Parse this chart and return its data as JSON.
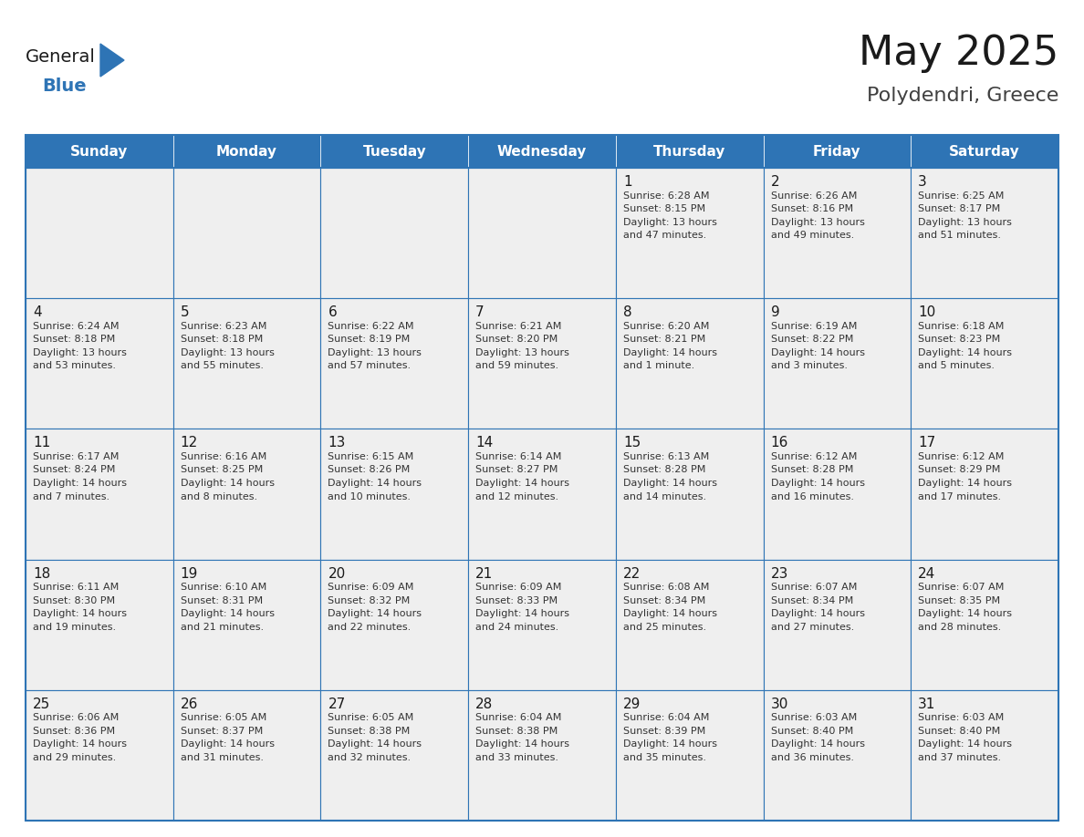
{
  "title": "May 2025",
  "subtitle": "Polydendri, Greece",
  "days_of_week": [
    "Sunday",
    "Monday",
    "Tuesday",
    "Wednesday",
    "Thursday",
    "Friday",
    "Saturday"
  ],
  "header_bg": "#2E74B5",
  "header_text": "#FFFFFF",
  "cell_bg": "#EFEFEF",
  "border_color": "#2E74B5",
  "text_color": "#333333",
  "day_num_color": "#1a1a1a",
  "logo_general_color": "#1a1a1a",
  "logo_blue_color": "#2E74B5",
  "weeks": [
    [
      {
        "day": null,
        "sunrise": null,
        "sunset": null,
        "daylight": null
      },
      {
        "day": null,
        "sunrise": null,
        "sunset": null,
        "daylight": null
      },
      {
        "day": null,
        "sunrise": null,
        "sunset": null,
        "daylight": null
      },
      {
        "day": null,
        "sunrise": null,
        "sunset": null,
        "daylight": null
      },
      {
        "day": 1,
        "sunrise": "6:28 AM",
        "sunset": "8:15 PM",
        "daylight": "13 hours and 47 minutes."
      },
      {
        "day": 2,
        "sunrise": "6:26 AM",
        "sunset": "8:16 PM",
        "daylight": "13 hours and 49 minutes."
      },
      {
        "day": 3,
        "sunrise": "6:25 AM",
        "sunset": "8:17 PM",
        "daylight": "13 hours and 51 minutes."
      }
    ],
    [
      {
        "day": 4,
        "sunrise": "6:24 AM",
        "sunset": "8:18 PM",
        "daylight": "13 hours and 53 minutes."
      },
      {
        "day": 5,
        "sunrise": "6:23 AM",
        "sunset": "8:18 PM",
        "daylight": "13 hours and 55 minutes."
      },
      {
        "day": 6,
        "sunrise": "6:22 AM",
        "sunset": "8:19 PM",
        "daylight": "13 hours and 57 minutes."
      },
      {
        "day": 7,
        "sunrise": "6:21 AM",
        "sunset": "8:20 PM",
        "daylight": "13 hours and 59 minutes."
      },
      {
        "day": 8,
        "sunrise": "6:20 AM",
        "sunset": "8:21 PM",
        "daylight": "14 hours and 1 minute."
      },
      {
        "day": 9,
        "sunrise": "6:19 AM",
        "sunset": "8:22 PM",
        "daylight": "14 hours and 3 minutes."
      },
      {
        "day": 10,
        "sunrise": "6:18 AM",
        "sunset": "8:23 PM",
        "daylight": "14 hours and 5 minutes."
      }
    ],
    [
      {
        "day": 11,
        "sunrise": "6:17 AM",
        "sunset": "8:24 PM",
        "daylight": "14 hours and 7 minutes."
      },
      {
        "day": 12,
        "sunrise": "6:16 AM",
        "sunset": "8:25 PM",
        "daylight": "14 hours and 8 minutes."
      },
      {
        "day": 13,
        "sunrise": "6:15 AM",
        "sunset": "8:26 PM",
        "daylight": "14 hours and 10 minutes."
      },
      {
        "day": 14,
        "sunrise": "6:14 AM",
        "sunset": "8:27 PM",
        "daylight": "14 hours and 12 minutes."
      },
      {
        "day": 15,
        "sunrise": "6:13 AM",
        "sunset": "8:28 PM",
        "daylight": "14 hours and 14 minutes."
      },
      {
        "day": 16,
        "sunrise": "6:12 AM",
        "sunset": "8:28 PM",
        "daylight": "14 hours and 16 minutes."
      },
      {
        "day": 17,
        "sunrise": "6:12 AM",
        "sunset": "8:29 PM",
        "daylight": "14 hours and 17 minutes."
      }
    ],
    [
      {
        "day": 18,
        "sunrise": "6:11 AM",
        "sunset": "8:30 PM",
        "daylight": "14 hours and 19 minutes."
      },
      {
        "day": 19,
        "sunrise": "6:10 AM",
        "sunset": "8:31 PM",
        "daylight": "14 hours and 21 minutes."
      },
      {
        "day": 20,
        "sunrise": "6:09 AM",
        "sunset": "8:32 PM",
        "daylight": "14 hours and 22 minutes."
      },
      {
        "day": 21,
        "sunrise": "6:09 AM",
        "sunset": "8:33 PM",
        "daylight": "14 hours and 24 minutes."
      },
      {
        "day": 22,
        "sunrise": "6:08 AM",
        "sunset": "8:34 PM",
        "daylight": "14 hours and 25 minutes."
      },
      {
        "day": 23,
        "sunrise": "6:07 AM",
        "sunset": "8:34 PM",
        "daylight": "14 hours and 27 minutes."
      },
      {
        "day": 24,
        "sunrise": "6:07 AM",
        "sunset": "8:35 PM",
        "daylight": "14 hours and 28 minutes."
      }
    ],
    [
      {
        "day": 25,
        "sunrise": "6:06 AM",
        "sunset": "8:36 PM",
        "daylight": "14 hours and 29 minutes."
      },
      {
        "day": 26,
        "sunrise": "6:05 AM",
        "sunset": "8:37 PM",
        "daylight": "14 hours and 31 minutes."
      },
      {
        "day": 27,
        "sunrise": "6:05 AM",
        "sunset": "8:38 PM",
        "daylight": "14 hours and 32 minutes."
      },
      {
        "day": 28,
        "sunrise": "6:04 AM",
        "sunset": "8:38 PM",
        "daylight": "14 hours and 33 minutes."
      },
      {
        "day": 29,
        "sunrise": "6:04 AM",
        "sunset": "8:39 PM",
        "daylight": "14 hours and 35 minutes."
      },
      {
        "day": 30,
        "sunrise": "6:03 AM",
        "sunset": "8:40 PM",
        "daylight": "14 hours and 36 minutes."
      },
      {
        "day": 31,
        "sunrise": "6:03 AM",
        "sunset": "8:40 PM",
        "daylight": "14 hours and 37 minutes."
      }
    ]
  ]
}
